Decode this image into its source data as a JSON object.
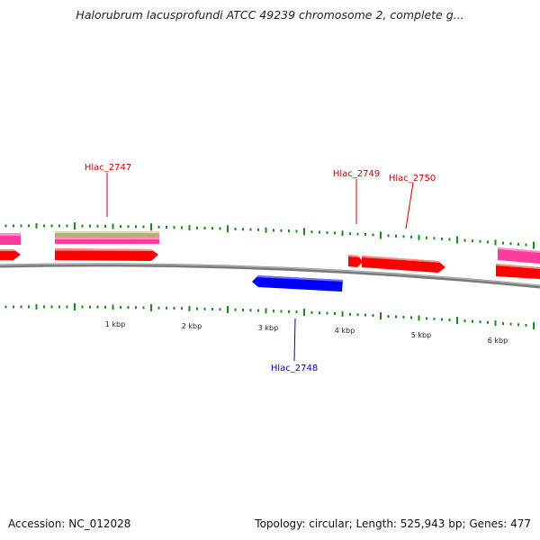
{
  "title": "Halorubrum lacusprofundi ATCC 49239 chromosome 2, complete g...",
  "scale_labels": [
    "1 kbp",
    "2 kbp",
    "3 kbp",
    "4 kbp",
    "5 kbp",
    "6 kbp"
  ],
  "gene_labels": {
    "hlac_2747": "Hlac_2747",
    "hlac_2748": "Hlac_2748",
    "hlac_2749": "Hlac_2749",
    "hlac_2750": "Hlac_2750"
  },
  "footer": {
    "accession": "Accession: NC_012028",
    "topology": "Topology: circular; Length: 525,943 bp; Genes: 477"
  },
  "colors": {
    "forward_cds": "#ff0000",
    "reverse_cds": "#0000ff",
    "rna_feature": "#ff3c9c",
    "other_feature": "#b9ad74",
    "tick": "#1a8c1a",
    "backbone": "#808080",
    "label_forward": "#cc0000",
    "label_reverse": "#0000cc"
  }
}
